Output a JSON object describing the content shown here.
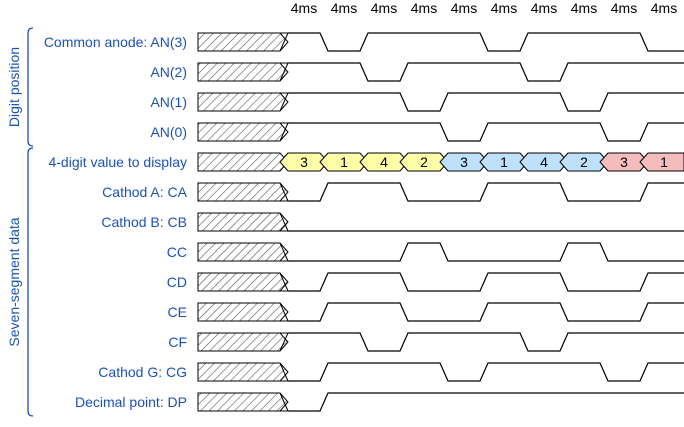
{
  "time_slot_label": "4ms",
  "time_slot_count": 10,
  "groups": [
    {
      "label": "Digit position",
      "rows": [
        0,
        3
      ]
    },
    {
      "label": "Seven-segment data",
      "rows": [
        4,
        12
      ]
    }
  ],
  "signals": [
    {
      "label": "Common anode: AN(3)",
      "type": "wave",
      "values": [
        1,
        0,
        1,
        1,
        1,
        0,
        1,
        1,
        1,
        0
      ]
    },
    {
      "label": "AN(2)",
      "type": "wave",
      "values": [
        1,
        1,
        0,
        1,
        1,
        1,
        0,
        1,
        1,
        1
      ]
    },
    {
      "label": "AN(1)",
      "type": "wave",
      "values": [
        1,
        1,
        1,
        0,
        1,
        1,
        1,
        0,
        1,
        1
      ]
    },
    {
      "label": "AN(0)",
      "type": "wave",
      "values": [
        1,
        1,
        1,
        1,
        0,
        1,
        1,
        1,
        0,
        1
      ]
    },
    {
      "label": "4-digit value to display",
      "type": "bus",
      "values": [
        "3",
        "1",
        "4",
        "2",
        "3",
        "1",
        "4",
        "2",
        "3",
        "1"
      ],
      "fills": [
        "yellow",
        "yellow",
        "yellow",
        "yellow",
        "blue",
        "blue",
        "blue",
        "blue",
        "red",
        "red"
      ]
    },
    {
      "label": "Cathod A: CA",
      "type": "wave",
      "values": [
        0,
        1,
        1,
        0,
        0,
        1,
        1,
        0,
        0,
        1
      ]
    },
    {
      "label": "Cathod B: CB",
      "type": "wave",
      "values": [
        0,
        0,
        0,
        0,
        0,
        0,
        0,
        0,
        0,
        0
      ]
    },
    {
      "label": "CC",
      "type": "wave",
      "values": [
        0,
        0,
        0,
        1,
        0,
        0,
        0,
        1,
        0,
        0
      ]
    },
    {
      "label": "CD",
      "type": "wave",
      "values": [
        0,
        1,
        1,
        0,
        0,
        1,
        1,
        0,
        0,
        1
      ]
    },
    {
      "label": "CE",
      "type": "wave",
      "values": [
        0,
        1,
        1,
        0,
        0,
        1,
        1,
        0,
        0,
        1
      ]
    },
    {
      "label": "CF",
      "type": "wave",
      "values": [
        1,
        1,
        0,
        1,
        1,
        1,
        0,
        1,
        1,
        1
      ]
    },
    {
      "label": "Cathod G: CG",
      "type": "wave",
      "values": [
        0,
        1,
        1,
        1,
        0,
        1,
        1,
        1,
        0,
        1
      ]
    },
    {
      "label": "Decimal point: DP",
      "type": "wave",
      "values": [
        0,
        1,
        1,
        1,
        1,
        1,
        1,
        1,
        1,
        1
      ]
    }
  ],
  "colors": {
    "label": "#1a52b8",
    "wave": "#000000",
    "hatch": "#555555",
    "yellow": "#fdfda8",
    "blue": "#bfe0fa",
    "red": "#f4bcbc"
  }
}
